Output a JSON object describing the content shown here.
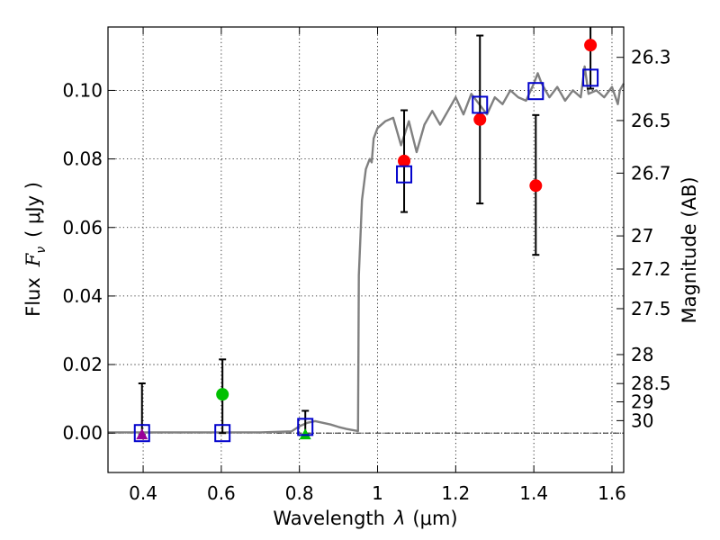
{
  "chart_data": {
    "type": "scatter",
    "xlabel": "Wavelength",
    "xlabel_symbol": "λ",
    "xlabel_units": "(μm)",
    "ylabel": "Flux",
    "ylabel_symbol": "F",
    "ylabel_subscript": "ν",
    "ylabel_units": "( μJy )",
    "y2label": "Magnitude (AB)",
    "xlim": [
      0.31,
      1.63
    ],
    "ylim": [
      -0.0115,
      0.1185
    ],
    "grid": true,
    "x_ticks": [
      0.4,
      0.6,
      0.8,
      1.0,
      1.2,
      1.4,
      1.6
    ],
    "x_tick_labels": [
      "0.4",
      "0.6",
      "0.8",
      "1",
      "1.2",
      "1.4",
      "1.6"
    ],
    "y_ticks": [
      0.0,
      0.02,
      0.04,
      0.06,
      0.08,
      0.1
    ],
    "y_tick_labels": [
      "0.00",
      "0.02",
      "0.04",
      "0.06",
      "0.08",
      "0.10"
    ],
    "mag_ticks": [
      {
        "label": "26.3",
        "mag": 26.3
      },
      {
        "label": "26.5",
        "mag": 26.5
      },
      {
        "label": "26.7",
        "mag": 26.7
      },
      {
        "label": "27",
        "mag": 27.0
      },
      {
        "label": "27.2",
        "mag": 27.2
      },
      {
        "label": "27.5",
        "mag": 27.5
      },
      {
        "label": "28",
        "mag": 28.0
      },
      {
        "label": "28.5",
        "mag": 28.5
      },
      {
        "label": "29",
        "mag": 29.0
      },
      {
        "label": "30",
        "mag": 30.0
      }
    ],
    "colors": {
      "model": "#808080",
      "observed_red": "#ff0000",
      "observed_green": "#00c000",
      "model_box": "#0000cc",
      "purple": "#990099",
      "errorbar": "#000000",
      "zero_line": "#000000"
    },
    "series": [
      {
        "name": "model-spectrum",
        "style": "line",
        "x": [
          0.31,
          0.4,
          0.5,
          0.6,
          0.7,
          0.78,
          0.8,
          0.82,
          0.84,
          0.86,
          0.88,
          0.9,
          0.92,
          0.94,
          0.95,
          0.952,
          0.96,
          0.97,
          0.98,
          0.985,
          0.99,
          1.0,
          1.02,
          1.04,
          1.06,
          1.08,
          1.1,
          1.12,
          1.14,
          1.16,
          1.18,
          1.2,
          1.22,
          1.24,
          1.26,
          1.28,
          1.3,
          1.32,
          1.34,
          1.36,
          1.38,
          1.4,
          1.41,
          1.42,
          1.44,
          1.46,
          1.48,
          1.5,
          1.52,
          1.53,
          1.54,
          1.56,
          1.58,
          1.6,
          1.615,
          1.62,
          1.63
        ],
        "y": [
          0.0002,
          0.0002,
          0.0002,
          0.0002,
          0.0002,
          0.0005,
          0.002,
          0.003,
          0.0035,
          0.003,
          0.0025,
          0.0018,
          0.0012,
          0.0008,
          0.0006,
          0.046,
          0.068,
          0.077,
          0.08,
          0.079,
          0.086,
          0.089,
          0.091,
          0.092,
          0.084,
          0.091,
          0.082,
          0.09,
          0.094,
          0.09,
          0.094,
          0.098,
          0.093,
          0.099,
          0.096,
          0.093,
          0.098,
          0.096,
          0.1,
          0.098,
          0.097,
          0.102,
          0.105,
          0.102,
          0.098,
          0.101,
          0.097,
          0.1,
          0.098,
          0.107,
          0.099,
          0.1,
          0.098,
          0.101,
          0.096,
          0.1,
          0.102
        ]
      },
      {
        "name": "observed-red",
        "style": "circle",
        "points": [
          {
            "x": 1.068,
            "y": 0.0794,
            "err_lo": 0.0645,
            "err_hi": 0.0942
          },
          {
            "x": 1.262,
            "y": 0.0915,
            "err_lo": 0.067,
            "err_hi": 0.116
          },
          {
            "x": 1.405,
            "y": 0.0722,
            "err_lo": 0.052,
            "err_hi": 0.0928
          },
          {
            "x": 1.545,
            "y": 0.1132,
            "err_lo": 0.1005,
            "err_hi": 0.1185
          }
        ]
      },
      {
        "name": "observed-green",
        "style": "circle",
        "points": [
          {
            "x": 0.603,
            "y": 0.0113,
            "err_lo": 0.0,
            "err_hi": 0.0215
          }
        ]
      },
      {
        "name": "observed-green-upper",
        "style": "triangle",
        "points": [
          {
            "x": 0.815,
            "y": -0.0005,
            "err_lo": -0.0005,
            "err_hi": 0.0065
          }
        ]
      },
      {
        "name": "observed-purple-upper",
        "style": "triangle",
        "points": [
          {
            "x": 0.397,
            "y": -0.0005,
            "err_lo": -0.0005,
            "err_hi": 0.0145
          }
        ]
      },
      {
        "name": "model-bandpass",
        "style": "square",
        "points": [
          {
            "x": 0.397,
            "y": 0.0
          },
          {
            "x": 0.603,
            "y": 0.0
          },
          {
            "x": 0.815,
            "y": 0.0018
          },
          {
            "x": 1.068,
            "y": 0.0755
          },
          {
            "x": 1.262,
            "y": 0.0958
          },
          {
            "x": 1.405,
            "y": 0.0998
          },
          {
            "x": 1.545,
            "y": 0.1037
          }
        ]
      }
    ]
  }
}
